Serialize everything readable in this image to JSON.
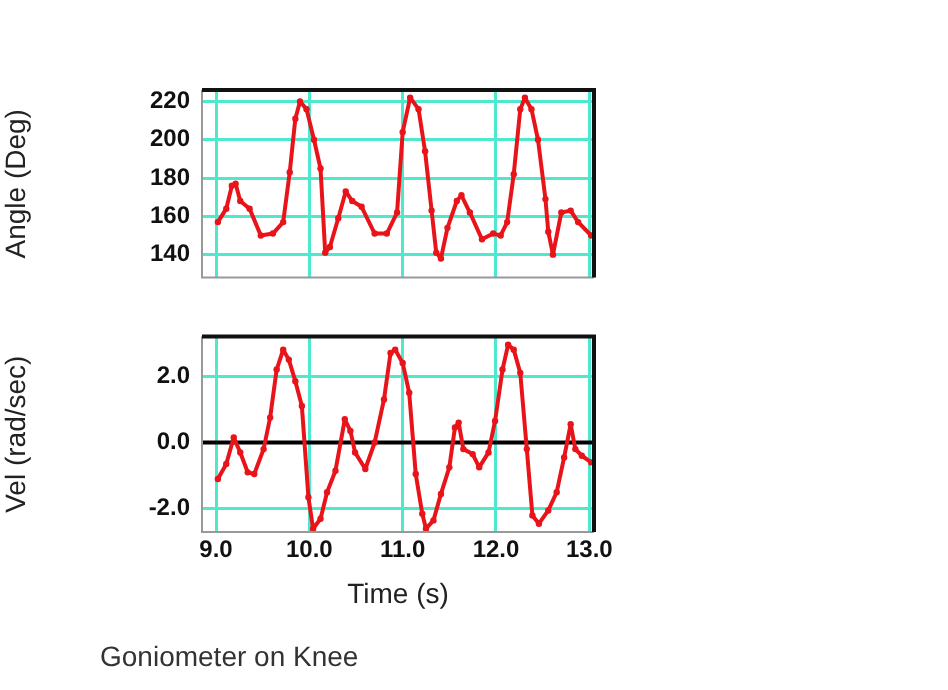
{
  "chart_data": [
    {
      "type": "line",
      "ylabel": "Angle (Deg)",
      "xlim": [
        8.85,
        13.05
      ],
      "xticks": [
        9.0,
        10.0,
        11.0,
        12.0,
        13.0
      ],
      "ylim": [
        128,
        226
      ],
      "yticks": [
        140,
        160,
        180,
        200,
        220
      ],
      "grid": true,
      "marker": "circle",
      "tick_labels": "y",
      "series": [
        {
          "color": "#e8141a",
          "x": [
            9.02,
            9.11,
            9.17,
            9.21,
            9.26,
            9.36,
            9.48,
            9.61,
            9.72,
            9.79,
            9.85,
            9.9,
            9.97,
            10.05,
            10.12,
            10.17,
            10.22,
            10.31,
            10.39,
            10.46,
            10.56,
            10.7,
            10.83,
            10.94,
            11.0,
            11.08,
            11.17,
            11.24,
            11.31,
            11.36,
            11.41,
            11.48,
            11.58,
            11.63,
            11.72,
            11.85,
            11.97,
            12.05,
            12.12,
            12.19,
            12.26,
            12.31,
            12.38,
            12.45,
            12.53,
            12.56,
            12.61,
            12.7,
            12.8,
            12.88,
            13.02
          ],
          "values": [
            157,
            164,
            176,
            177,
            168,
            164,
            150,
            151,
            157,
            183,
            211,
            220,
            216,
            200,
            185,
            141,
            144,
            159,
            173,
            168,
            165,
            151,
            151,
            162,
            204,
            222,
            216,
            194,
            163,
            141,
            138,
            154,
            168,
            171,
            162,
            148,
            151,
            150,
            157,
            182,
            216,
            222,
            216,
            200,
            169,
            152,
            140,
            162,
            163,
            157,
            150
          ]
        }
      ]
    },
    {
      "type": "line",
      "ylabel": "Vel (rad/sec)",
      "xlabel": "Time (s)",
      "xlim": [
        8.85,
        13.05
      ],
      "xticks": [
        {
          "value": 9.0,
          "label": "9.0"
        },
        {
          "value": 10.0,
          "label": "10.0"
        },
        {
          "value": 11.0,
          "label": "11.0"
        },
        {
          "value": 12.0,
          "label": "12.0"
        },
        {
          "value": 13.0,
          "label": "13.0"
        }
      ],
      "ylim": [
        -2.7,
        3.2
      ],
      "yticks": [
        {
          "value": -2.0,
          "label": "-2.0"
        },
        {
          "value": 0.0,
          "label": "0.0"
        },
        {
          "value": 2.0,
          "label": "2.0"
        }
      ],
      "grid": true,
      "marker": "circle",
      "ref_lines": [
        {
          "axis": "y",
          "value": 0,
          "color": "#000000"
        }
      ],
      "annotations": [
        "Goniometer on Knee"
      ],
      "series": [
        {
          "color": "#e8141a",
          "x": [
            9.02,
            9.11,
            9.19,
            9.26,
            9.34,
            9.41,
            9.51,
            9.58,
            9.65,
            9.72,
            9.78,
            9.85,
            9.92,
            9.99,
            10.04,
            10.12,
            10.19,
            10.28,
            10.38,
            10.44,
            10.49,
            10.6,
            10.7,
            10.8,
            10.87,
            10.92,
            11.0,
            11.07,
            11.14,
            11.21,
            11.25,
            11.33,
            11.41,
            11.5,
            11.56,
            11.6,
            11.65,
            11.75,
            11.82,
            11.92,
            11.99,
            12.07,
            12.13,
            12.19,
            12.26,
            12.33,
            12.39,
            12.46,
            12.56,
            12.65,
            12.73,
            12.8,
            12.85,
            12.92,
            13.02
          ],
          "values": [
            -1.1,
            -0.65,
            0.15,
            -0.3,
            -0.9,
            -0.95,
            -0.2,
            0.75,
            2.2,
            2.8,
            2.5,
            1.85,
            1.1,
            -1.65,
            -2.6,
            -2.3,
            -1.5,
            -0.85,
            0.7,
            0.35,
            -0.3,
            -0.8,
            0.0,
            1.3,
            2.7,
            2.8,
            2.4,
            1.5,
            -0.95,
            -2.15,
            -2.6,
            -2.35,
            -1.55,
            -0.75,
            0.45,
            0.6,
            -0.2,
            -0.35,
            -0.75,
            -0.3,
            0.65,
            2.2,
            2.95,
            2.8,
            2.1,
            -0.2,
            -2.2,
            -2.45,
            -2.05,
            -1.5,
            -0.45,
            0.55,
            -0.2,
            -0.4,
            -0.6
          ]
        }
      ]
    }
  ]
}
